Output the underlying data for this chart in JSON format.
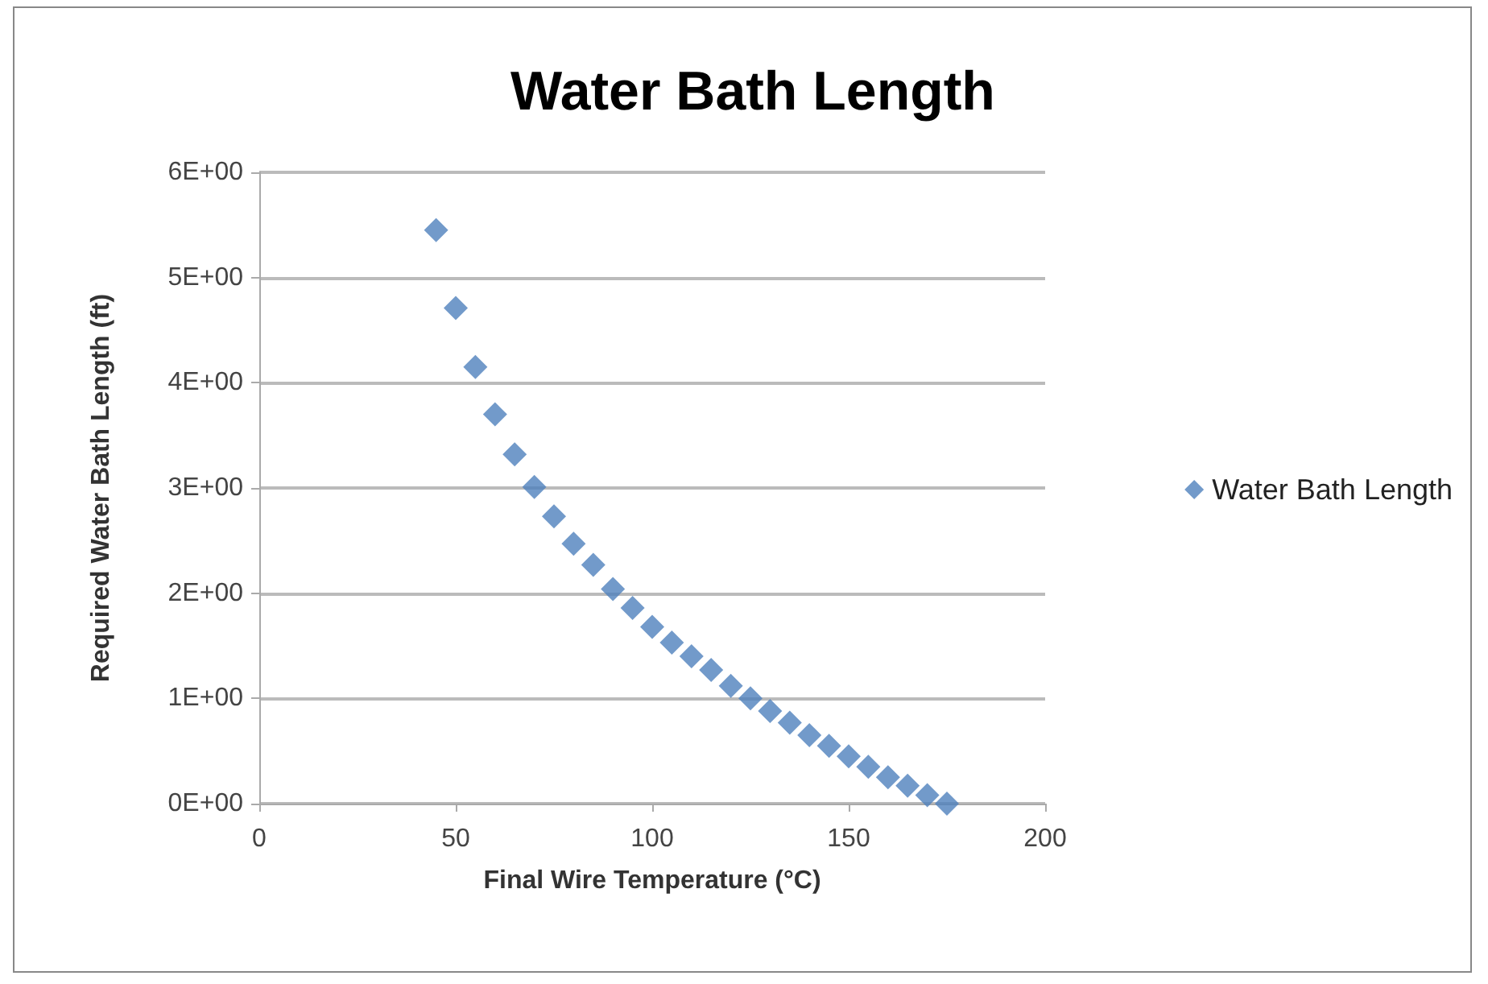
{
  "chart_data": {
    "type": "scatter",
    "title": "Water Bath Length",
    "xlabel": "Final Wire Temperature (°C)",
    "ylabel": "Required Water Bath Length (ft)",
    "x": [
      45,
      50,
      55,
      60,
      65,
      70,
      75,
      80,
      85,
      90,
      95,
      100,
      105,
      110,
      115,
      120,
      125,
      130,
      135,
      140,
      145,
      150,
      155,
      160,
      165,
      170,
      175
    ],
    "series": [
      {
        "name": "Water Bath Length",
        "color": "#4f81bd",
        "values": [
          5.45,
          4.71,
          4.15,
          3.7,
          3.32,
          3.01,
          2.73,
          2.47,
          2.27,
          2.04,
          1.86,
          1.68,
          1.53,
          1.4,
          1.27,
          1.12,
          1.0,
          0.88,
          0.77,
          0.65,
          0.55,
          0.45,
          0.35,
          0.25,
          0.17,
          0.08,
          0.0
        ]
      }
    ],
    "xlim": [
      0,
      200
    ],
    "xticks": [
      0,
      50,
      100,
      150,
      200
    ],
    "ylim": [
      0,
      6
    ],
    "yticks": [
      {
        "value": 0,
        "label": "0E+00"
      },
      {
        "value": 1,
        "label": "1E+00"
      },
      {
        "value": 2,
        "label": "2E+00"
      },
      {
        "value": 3,
        "label": "3E+00"
      },
      {
        "value": 4,
        "label": "4E+00"
      },
      {
        "value": 5,
        "label": "5E+00"
      },
      {
        "value": 6,
        "label": "6E+00"
      }
    ],
    "grid": "y",
    "legend": "right",
    "marker": "diamond"
  }
}
